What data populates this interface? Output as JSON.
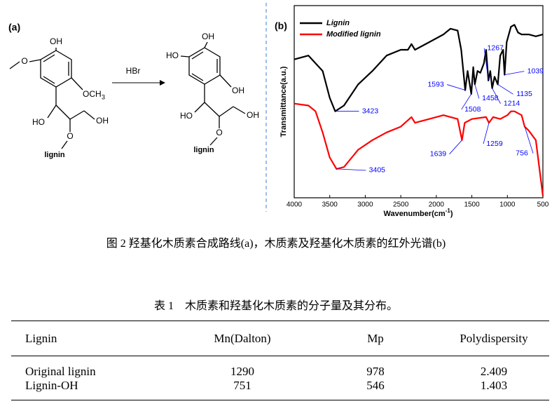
{
  "scheme": {
    "panel_label": "(a)",
    "reactant_labels": [
      "OH",
      "O",
      "OCH",
      "3",
      "HO",
      "OH",
      "O",
      "lignin"
    ],
    "reagent": "HBr",
    "product_labels": [
      "OH",
      "HO",
      "OH",
      "HO",
      "OH",
      "O",
      "lignin"
    ]
  },
  "chart_data": {
    "type": "line",
    "panel_label": "(b)",
    "xlabel": "Wavenumber(cm",
    "xlabel_sup": "-1",
    "xlabel_end": ")",
    "ylabel": "Transmittance(a.u.)",
    "xlim": [
      4000,
      500
    ],
    "xticks": [
      4000,
      3500,
      3000,
      2500,
      2000,
      1500,
      1000,
      500
    ],
    "ylim": [
      0,
      100
    ],
    "legend": "upper-left",
    "series": [
      {
        "name": "Lignin",
        "color": "#000000",
        "x": [
          4000,
          3800,
          3600,
          3500,
          3423,
          3300,
          3100,
          2900,
          2700,
          2500,
          2400,
          2350,
          2300,
          2100,
          1900,
          1800,
          1700,
          1650,
          1593,
          1560,
          1508,
          1480,
          1458,
          1420,
          1380,
          1330,
          1300,
          1267,
          1240,
          1214,
          1180,
          1135,
          1100,
          1060,
          1039,
          1010,
          950,
          900,
          850,
          800,
          700,
          600,
          500
        ],
        "values": [
          72,
          74,
          66,
          52,
          45,
          48,
          59,
          66,
          74,
          77,
          77,
          80,
          77,
          81,
          85,
          88,
          87,
          77,
          56,
          66,
          54,
          68,
          59,
          66,
          65,
          70,
          77,
          61,
          66,
          57,
          63,
          59,
          74,
          77,
          64,
          81,
          89,
          90,
          86,
          85,
          85,
          84,
          85
        ]
      },
      {
        "name": "Modified lignin",
        "color": "#ff0000",
        "x": [
          4000,
          3800,
          3700,
          3600,
          3500,
          3405,
          3300,
          3100,
          2900,
          2700,
          2500,
          2350,
          2300,
          2100,
          1900,
          1700,
          1639,
          1600,
          1500,
          1300,
          1259,
          1200,
          1100,
          1000,
          950,
          900,
          800,
          756,
          700,
          600,
          500
        ],
        "values": [
          49,
          48,
          45,
          34,
          21,
          15,
          16,
          25,
          30,
          34,
          37,
          42,
          39,
          41,
          43,
          41,
          30,
          39,
          41,
          42,
          39,
          42,
          41,
          43,
          45,
          45,
          43,
          37,
          35,
          30,
          1
        ]
      }
    ],
    "annotations": [
      {
        "series": 0,
        "x": 3423,
        "y": 45
      },
      {
        "series": 0,
        "x": 1593,
        "y": 56
      },
      {
        "series": 0,
        "x": 1508,
        "y": 54
      },
      {
        "series": 0,
        "x": 1458,
        "y": 59
      },
      {
        "series": 0,
        "x": 1267,
        "y": 61
      },
      {
        "series": 0,
        "x": 1214,
        "y": 57
      },
      {
        "series": 0,
        "x": 1135,
        "y": 59
      },
      {
        "series": 0,
        "x": 1039,
        "y": 64
      },
      {
        "series": 1,
        "x": 3405,
        "y": 15
      },
      {
        "series": 1,
        "x": 1639,
        "y": 30
      },
      {
        "series": 1,
        "x": 1259,
        "y": 39
      },
      {
        "series": 1,
        "x": 756,
        "y": 37
      }
    ],
    "annotation_color": "#0000ff"
  },
  "figure_caption": "图 2  羟基化木质素合成路线(a)，木质素及羟基化木质素的红外光谱(b)",
  "table": {
    "caption": "表 1    木质素和羟基化木质素的分子量及其分布。",
    "header": [
      "Lignin",
      "Mn(Dalton)",
      "Mp",
      "Polydispersity"
    ],
    "rows": [
      [
        "Original lignin",
        1290,
        978,
        2.409
      ],
      [
        "Lignin-OH",
        751,
        546,
        1.403
      ]
    ]
  }
}
